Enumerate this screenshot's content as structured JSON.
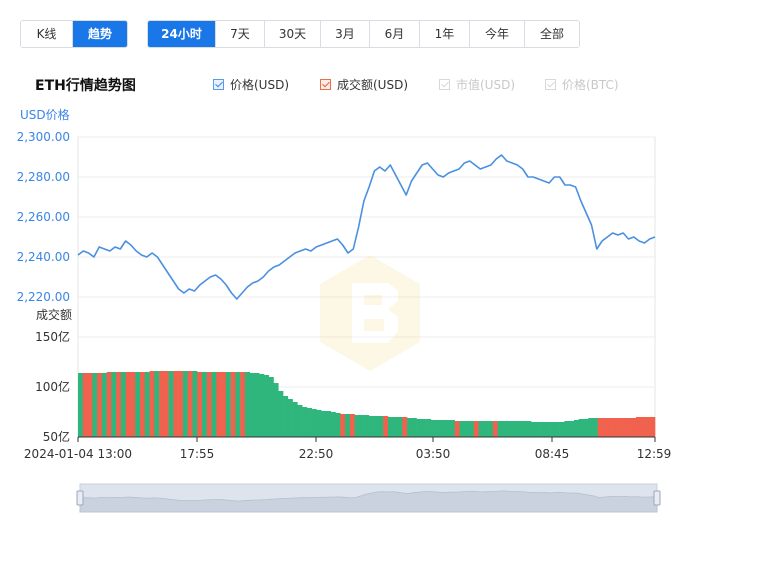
{
  "tabs": {
    "view": [
      {
        "label": "K线",
        "active": false
      },
      {
        "label": "趋势",
        "active": true
      }
    ],
    "range": [
      {
        "label": "24小时",
        "active": true
      },
      {
        "label": "7天",
        "active": false
      },
      {
        "label": "30天",
        "active": false
      },
      {
        "label": "3月",
        "active": false
      },
      {
        "label": "6月",
        "active": false
      },
      {
        "label": "1年",
        "active": false
      },
      {
        "label": "今年",
        "active": false
      },
      {
        "label": "全部",
        "active": false
      }
    ]
  },
  "header": {
    "title": "ETH行情趋势图"
  },
  "legend": [
    {
      "label": "价格(USD)",
      "checked": true,
      "color": "#3a86e8"
    },
    {
      "label": "成交额(USD)",
      "checked": true,
      "color": "#e85f3c"
    },
    {
      "label": "市值(USD)",
      "checked": false,
      "color": "#cccccc"
    },
    {
      "label": "价格(BTC)",
      "checked": false,
      "color": "#cccccc"
    }
  ],
  "colors": {
    "accent": "#1a77e8",
    "price_line": "#4a90e2",
    "volume_up": "#2fb67c",
    "volume_down": "#f0624d",
    "axis_text": "#3a86e8"
  },
  "chart_data": [
    {
      "type": "line",
      "title": "ETH行情趋势图",
      "ylabel": "USD价格",
      "ylim": [
        2210,
        2300
      ],
      "yticks": [
        "2,300.00",
        "2,280.00",
        "2,260.00",
        "2,240.00",
        "2,220.00"
      ],
      "x_start": "2024-01-04 13:00",
      "x_ticks": [
        "2024-01-04 13:00",
        "17:55",
        "22:50",
        "03:50",
        "08:45",
        "12:59"
      ],
      "grid": true,
      "series": [
        {
          "name": "价格(USD)",
          "values": [
            2241,
            2243,
            2242,
            2240,
            2245,
            2244,
            2243,
            2245,
            2244,
            2248,
            2246,
            2243,
            2241,
            2240,
            2242,
            2240,
            2236,
            2232,
            2228,
            2224,
            2222,
            2224,
            2223,
            2226,
            2228,
            2230,
            2231,
            2229,
            2226,
            2222,
            2219,
            2222,
            2225,
            2227,
            2228,
            2230,
            2233,
            2235,
            2236,
            2238,
            2240,
            2242,
            2243,
            2244,
            2243,
            2245,
            2246,
            2247,
            2248,
            2249,
            2246,
            2242,
            2244,
            2255,
            2268,
            2275,
            2283,
            2285,
            2283,
            2286,
            2281,
            2276,
            2271,
            2278,
            2282,
            2286,
            2287,
            2284,
            2281,
            2280,
            2282,
            2283,
            2284,
            2287,
            2288,
            2286,
            2284,
            2285,
            2286,
            2289,
            2291,
            2288,
            2287,
            2286,
            2284,
            2280,
            2280,
            2279,
            2278,
            2277,
            2280,
            2280,
            2276,
            2276,
            2275,
            2268,
            2262,
            2256,
            2244,
            2248,
            2250,
            2252,
            2251,
            2252,
            2249,
            2250,
            2248,
            2247,
            2249,
            2250
          ]
        }
      ]
    },
    {
      "type": "bar",
      "title": "",
      "ylabel": "成交额",
      "ylim": [
        50,
        150
      ],
      "yticks": [
        "150亿",
        "100亿",
        "50亿"
      ],
      "series": [
        {
          "name": "成交额(USD)",
          "values": [
            114,
            114,
            114,
            114,
            114,
            114,
            115,
            115,
            115,
            115,
            115,
            115,
            115,
            115,
            115,
            116,
            116,
            116,
            116,
            116,
            116,
            116,
            116,
            116,
            116,
            115,
            115,
            115,
            115,
            115,
            115,
            115,
            115,
            115,
            115,
            115,
            114,
            114,
            113,
            112,
            110,
            104,
            96,
            91,
            88,
            85,
            82,
            80,
            79,
            78,
            77,
            76,
            76,
            75,
            74,
            73,
            73,
            73,
            72,
            72,
            72,
            71,
            71,
            71,
            71,
            70,
            70,
            70,
            70,
            69,
            69,
            68,
            68,
            68,
            67,
            67,
            67,
            67,
            67,
            66,
            66,
            66,
            66,
            66,
            66,
            66,
            66,
            66,
            66,
            66,
            66,
            66,
            66,
            66,
            66,
            65,
            65,
            65,
            65,
            65,
            65,
            65,
            66,
            66,
            67,
            68,
            68,
            69,
            69,
            69,
            69,
            69,
            69,
            69,
            69,
            69,
            69,
            70,
            70,
            70,
            70
          ],
          "colors": "GRRGRGRGRGRRGRGRGRRGRRGRGRGRGRRGRGRGGGGGGGGGGGGGGGGGGGGRGRGGGGGGRGGGRGGGGGGGGGGRGGGRGGGRGGGGGGGGGGGGGGGGGGGGGRRRRRRRRRRRRRRRRRRRRR"
        }
      ]
    }
  ]
}
